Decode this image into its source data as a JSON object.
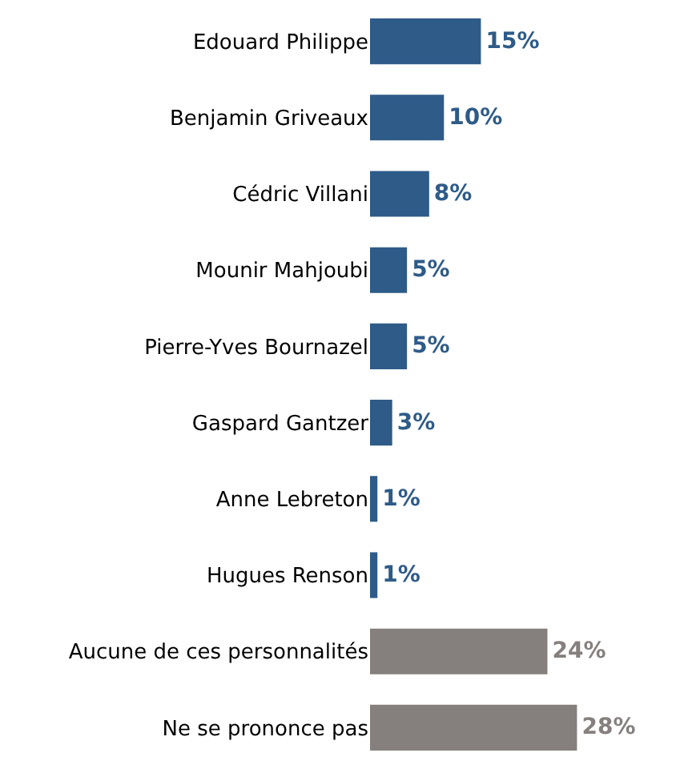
{
  "chart_data": {
    "type": "bar",
    "orientation": "horizontal",
    "categories": [
      "Edouard Philippe",
      "Benjamin Griveaux",
      "Cédric Villani",
      "Mounir Mahjoubi",
      "Pierre-Yves Bournazel",
      "Gaspard Gantzer",
      "Anne Lebreton",
      "Hugues Renson",
      "Aucune de ces personnalités",
      "Ne se prononce pas"
    ],
    "values": [
      15,
      10,
      8,
      5,
      5,
      3,
      1,
      1,
      24,
      28
    ],
    "colors": [
      "#2e5b88",
      "#2e5b88",
      "#2e5b88",
      "#2e5b88",
      "#2e5b88",
      "#2e5b88",
      "#2e5b88",
      "#2e5b88",
      "#85807e",
      "#85807e"
    ],
    "value_labels": [
      "15%",
      "10%",
      "8%",
      "5%",
      "5%",
      "3%",
      "1%",
      "1%",
      "24%",
      "28%"
    ]
  }
}
